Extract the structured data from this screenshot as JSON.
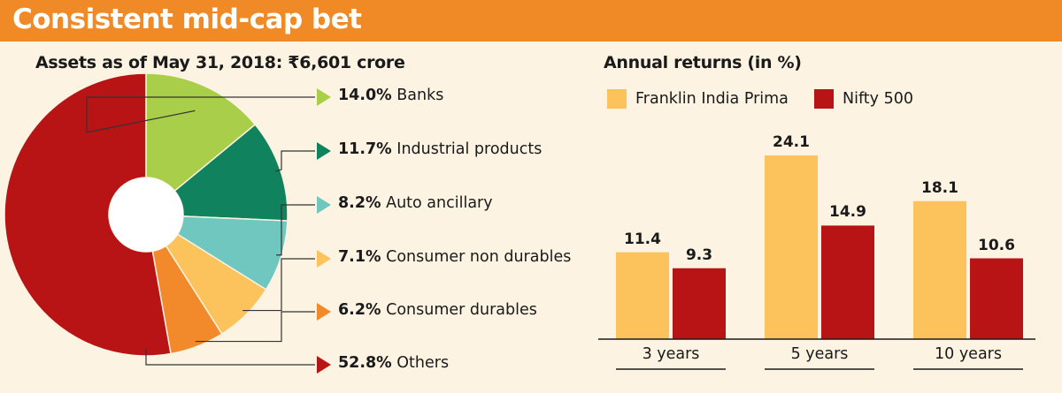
{
  "header": {
    "title": "Consistent mid-cap bet"
  },
  "chart_data": [
    {
      "type": "pie",
      "title": "Assets as of May 31, 2018: ₹6,601 crore",
      "slices": [
        {
          "pct": "14.0%",
          "label": "Banks",
          "value": 14.0,
          "color": "#a9cf4a"
        },
        {
          "pct": "11.7%",
          "label": "Industrial products",
          "value": 11.7,
          "color": "#11825e"
        },
        {
          "pct": "8.2%",
          "label": "Auto ancillary",
          "value": 8.2,
          "color": "#6fc7bf"
        },
        {
          "pct": "7.1%",
          "label": "Consumer non durables",
          "value": 7.1,
          "color": "#fcc35c"
        },
        {
          "pct": "6.2%",
          "label": "Consumer durables",
          "value": 6.2,
          "color": "#f28a2b"
        },
        {
          "pct": "52.8%",
          "label": "Others",
          "value": 52.8,
          "color": "#b81416"
        }
      ]
    },
    {
      "type": "bar",
      "title": "Annual returns (in %)",
      "categories": [
        "3 years",
        "5 years",
        "10 years"
      ],
      "series": [
        {
          "name": "Franklin India Prima",
          "values": [
            11.4,
            24.1,
            18.1
          ],
          "labels": [
            "11.4",
            "24.1",
            "18.1"
          ],
          "color": "#fcc35c"
        },
        {
          "name": "Nifty 500",
          "values": [
            9.3,
            14.9,
            10.6
          ],
          "labels": [
            "9.3",
            "14.9",
            "10.6"
          ],
          "color": "#b81416"
        }
      ],
      "ylim": [
        0,
        24.1
      ]
    }
  ]
}
